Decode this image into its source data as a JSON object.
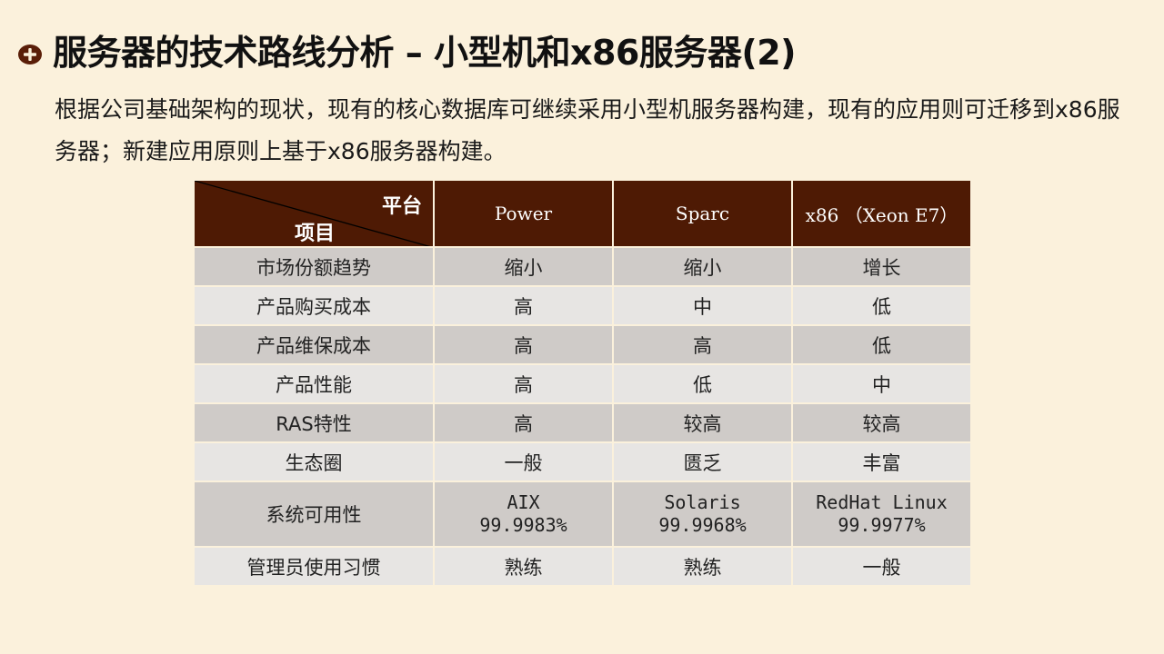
{
  "title": "服务器的技术路线分析 – 小型机和x86服务器(2)",
  "subtitle": "根据公司基础架构的现状，现有的核心数据库可继续采用小型机服务器构建，现有的应用则可迁移到x86服务器；新建应用原则上基于x86服务器构建。",
  "icon": "plus-circle-icon",
  "colors": {
    "background": "#fbf1dc",
    "header": "#4e1a04",
    "row_dark": "#cfcbc8",
    "row_light": "#e7e5e3",
    "icon": "#5a1e08"
  },
  "table": {
    "corner_top": "平台",
    "corner_bottom": "项目",
    "columns": [
      "Power",
      "Sparc",
      "x86 （Xeon E7）"
    ],
    "rows": [
      {
        "label": "市场份额趋势",
        "cells": [
          [
            "缩小"
          ],
          [
            "缩小"
          ],
          [
            "增长"
          ]
        ]
      },
      {
        "label": "产品购买成本",
        "cells": [
          [
            "高"
          ],
          [
            "中"
          ],
          [
            "低"
          ]
        ]
      },
      {
        "label": "产品维保成本",
        "cells": [
          [
            "高"
          ],
          [
            "高"
          ],
          [
            "低"
          ]
        ]
      },
      {
        "label": "产品性能",
        "cells": [
          [
            "高"
          ],
          [
            "低"
          ],
          [
            "中"
          ]
        ]
      },
      {
        "label": "RAS特性",
        "cells": [
          [
            "高"
          ],
          [
            "较高"
          ],
          [
            "较高"
          ]
        ]
      },
      {
        "label": "生态圈",
        "cells": [
          [
            "一般"
          ],
          [
            "匮乏"
          ],
          [
            "丰富"
          ]
        ]
      },
      {
        "label": "系统可用性",
        "cells": [
          [
            "AIX",
            "99.9983%"
          ],
          [
            "Solaris",
            "99.9968%"
          ],
          [
            "RedHat Linux",
            "99.9977%"
          ]
        ]
      },
      {
        "label": "管理员使用习惯",
        "cells": [
          [
            "熟练"
          ],
          [
            "熟练"
          ],
          [
            "一般"
          ]
        ]
      }
    ]
  }
}
